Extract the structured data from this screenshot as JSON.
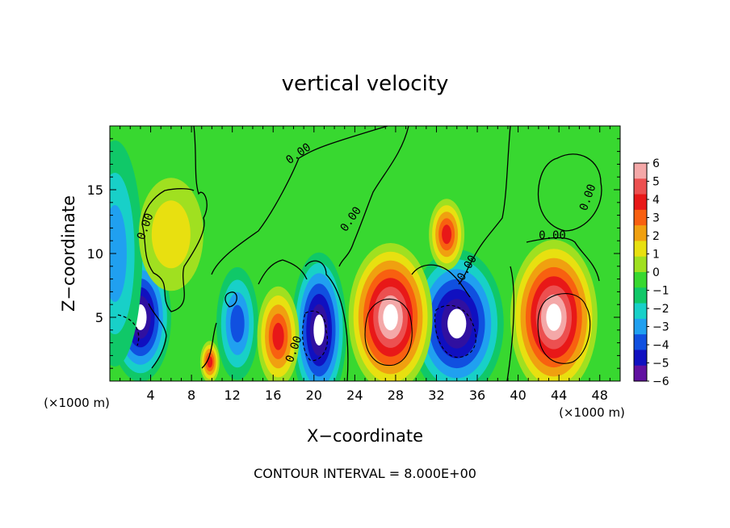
{
  "chart_data": {
    "type": "heatmap",
    "title": "vertical velocity",
    "xlabel": "X−coordinate",
    "ylabel": "Z−coordinate",
    "x_unit": "(×1000 m)",
    "z_unit": "(×1000 m)",
    "footer": "CONTOUR INTERVAL = 8.000E+00",
    "xlim": [
      0,
      50
    ],
    "ylim": [
      0,
      20
    ],
    "xticks": [
      4,
      8,
      12,
      16,
      20,
      24,
      28,
      32,
      36,
      40,
      44,
      48
    ],
    "yticks": [
      5,
      10,
      15
    ],
    "colorbar": {
      "range": [
        -6,
        6
      ],
      "labels": [
        "6",
        "5",
        "4",
        "3",
        "2",
        "1",
        "0",
        "−1",
        "−2",
        "−3",
        "−4",
        "−5",
        "−6"
      ],
      "colors": [
        "#f4a8a8",
        "#ec5050",
        "#e81818",
        "#f86010",
        "#f0a010",
        "#e8e010",
        "#a0e020",
        "#38d830",
        "#10c868",
        "#18d0c8",
        "#20a0f0",
        "#1050e0",
        "#1010c0",
        "#6010a0"
      ]
    },
    "contour_label": "0.00",
    "updrafts": [
      {
        "x": 16.5,
        "z": 3.5,
        "peak": 5
      },
      {
        "x": 27.5,
        "z": 5,
        "peak": 8
      },
      {
        "x": 33,
        "z": 11.5,
        "peak": 5
      },
      {
        "x": 43.5,
        "z": 5,
        "peak": 8
      },
      {
        "x": 9.8,
        "z": 1.5,
        "peak": 5
      },
      {
        "x": 6,
        "z": 11.5,
        "peak": 2
      }
    ],
    "downdrafts": [
      {
        "x": 3,
        "z": 5,
        "peak": -8
      },
      {
        "x": 20.5,
        "z": 4,
        "peak": -8
      },
      {
        "x": 34,
        "z": 4.5,
        "peak": -8
      },
      {
        "x": 12.5,
        "z": 4.5,
        "peak": -4
      },
      {
        "x": 0.5,
        "z": 10,
        "peak": -3
      }
    ]
  }
}
